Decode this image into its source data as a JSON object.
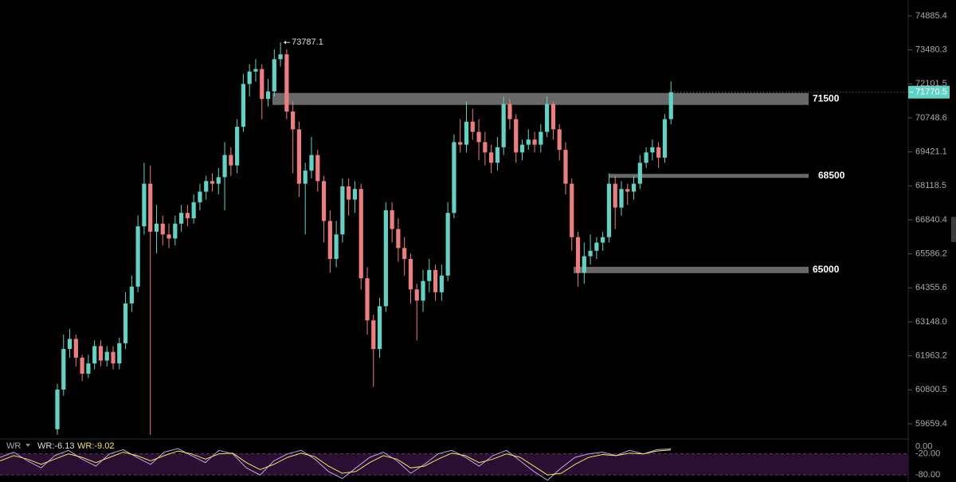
{
  "chart_data": {
    "type": "candlestick",
    "log_scale": true,
    "ylim": [
      59184,
      75553
    ],
    "yticks": [
      74885.4,
      73480.3,
      72101.5,
      70748.6,
      69421.1,
      68118.5,
      66840.4,
      65586.2,
      64355.6,
      {
        "value": 63148.0,
        "label": "63148.0"
      },
      61963.2,
      60800.5,
      59659.4
    ],
    "up_color": "#5fd3c4",
    "down_color": "#ef7d7d",
    "open": [
      59480,
      60810,
      62200,
      62550,
      61900,
      61350,
      61700,
      62300,
      61800,
      62100,
      61700,
      62400,
      63800,
      64400,
      66600,
      68200,
      66400,
      66700,
      66300,
      66150,
      66700,
      67100,
      66900,
      67500,
      67900,
      68300,
      68200,
      68450,
      69300,
      68900,
      70400,
      72100,
      72600,
      72700,
      71500,
      71800,
      73100,
      73300,
      71000,
      70300,
      68200,
      68700,
      69300,
      68300,
      66800,
      65400,
      66300,
      68100,
      67600,
      68000,
      64700,
      63200,
      62200,
      63700,
      67200,
      66500,
      65800,
      65400,
      64300,
      63900,
      64600,
      65000,
      64200,
      64800,
      67100,
      69800,
      69700,
      70600,
      70200,
      69800,
      69400,
      69000,
      69600,
      71300,
      70700,
      69400,
      69700,
      69900,
      69700,
      70200,
      71300,
      70300,
      69500,
      68200,
      66200,
      64900,
      65500,
      65700,
      66000,
      66200,
      68200,
      67300,
      68000,
      67900,
      68200,
      69000,
      69400,
      69600,
      69200,
      70700
    ],
    "high": [
      61000,
      62700,
      62900,
      62700,
      62000,
      62000,
      62500,
      62500,
      62300,
      62300,
      62600,
      64200,
      64800,
      67000,
      69000,
      68900,
      67400,
      67000,
      66700,
      67000,
      67400,
      67400,
      67800,
      68200,
      68500,
      68600,
      68800,
      69800,
      69600,
      70700,
      72500,
      72900,
      73100,
      72900,
      72300,
      73500,
      73787.1,
      73500,
      71400,
      70600,
      69000,
      70000,
      69500,
      68500,
      67200,
      66800,
      68400,
      68400,
      68300,
      68200,
      65100,
      63400,
      64000,
      67500,
      67500,
      66900,
      66200,
      65600,
      64500,
      65000,
      65400,
      65200,
      65200,
      67500,
      70100,
      70700,
      71400,
      71100,
      70700,
      70200,
      69700,
      70000,
      71600,
      71500,
      70900,
      69900,
      70300,
      70200,
      70500,
      71600,
      71400,
      70500,
      69800,
      68400,
      66400,
      66000,
      66300,
      66200,
      66400,
      68600,
      68500,
      68300,
      68200,
      68500,
      69300,
      69600,
      69900,
      69800,
      70900,
      72200
    ],
    "low": [
      59300,
      60600,
      61900,
      61600,
      61100,
      61200,
      61500,
      61600,
      61600,
      61500,
      61500,
      62200,
      63500,
      64200,
      66300,
      59300,
      65600,
      65900,
      65800,
      65900,
      66400,
      66600,
      66700,
      67200,
      67600,
      67900,
      67800,
      67200,
      68500,
      68600,
      70200,
      71600,
      72200,
      70700,
      71200,
      71600,
      72800,
      70700,
      68600,
      67700,
      66300,
      68400,
      67900,
      66000,
      64900,
      65100,
      66000,
      67000,
      67100,
      64300,
      62700,
      60900,
      61900,
      63500,
      66000,
      65300,
      64800,
      63800,
      62500,
      63500,
      64200,
      63900,
      63900,
      64600,
      66900,
      69400,
      69400,
      69900,
      69100,
      68900,
      68600,
      68700,
      69300,
      70300,
      69000,
      69100,
      69500,
      69400,
      69400,
      70000,
      69900,
      69100,
      67800,
      65700,
      64400,
      64500,
      65200,
      65400,
      65700,
      66000,
      66500,
      67000,
      67400,
      67600,
      68000,
      68800,
      69100,
      68800,
      69000,
      70500
    ],
    "close": [
      60810,
      62200,
      62550,
      61900,
      61350,
      61700,
      62300,
      61800,
      62100,
      61700,
      62400,
      63800,
      64400,
      66600,
      68200,
      66400,
      66700,
      66300,
      66150,
      66700,
      67100,
      66900,
      67500,
      67900,
      68300,
      68200,
      68450,
      69300,
      68900,
      70400,
      72100,
      72600,
      72700,
      71500,
      71800,
      73100,
      73300,
      71000,
      70300,
      68200,
      68700,
      69300,
      68300,
      66800,
      65400,
      66300,
      68100,
      67600,
      68000,
      64700,
      63200,
      62200,
      63700,
      67200,
      66500,
      65800,
      65400,
      64300,
      63900,
      64600,
      65000,
      64200,
      64800,
      67100,
      69800,
      69700,
      70600,
      70200,
      69800,
      69400,
      69000,
      69600,
      71300,
      70700,
      69400,
      69700,
      69900,
      69700,
      70200,
      71300,
      70300,
      69500,
      68200,
      66200,
      64900,
      65500,
      65700,
      66000,
      66200,
      68200,
      67300,
      68000,
      67900,
      68200,
      69000,
      69400,
      69600,
      69200,
      70700,
      71770.5
    ],
    "zones": [
      {
        "level": 71500
      },
      {
        "level": 68500
      },
      {
        "level": 65000
      }
    ],
    "indicator": {
      "title": "WR",
      "ylim": [
        -100,
        20
      ],
      "yticks": [
        {
          "value": 0,
          "label": "0.00"
        },
        {
          "value": -20,
          "label": "-20.00"
        },
        {
          "value": -80,
          "label": "-80.00"
        }
      ],
      "series": [
        {
          "label": "WR:-6.13",
          "color": "#b9a7e6",
          "values": [
            -30,
            -15,
            -40,
            -60,
            -25,
            -10,
            -35,
            -55,
            -20,
            -8,
            -30,
            -50,
            -15,
            -5,
            -25,
            -45,
            -10,
            -20,
            -60,
            -80,
            -40,
            -20,
            -10,
            -35,
            -70,
            -90,
            -60,
            -30,
            -15,
            -40,
            -75,
            -50,
            -20,
            -10,
            -30,
            -55,
            -25,
            -10,
            -40,
            -70,
            -95,
            -60,
            -30,
            -20,
            -15,
            -25,
            -10,
            -20,
            -8,
            -6.13
          ]
        },
        {
          "label": "WR:-9.02",
          "color": "#f3e35a",
          "values": [
            -40,
            -25,
            -35,
            -50,
            -35,
            -20,
            -30,
            -45,
            -30,
            -15,
            -25,
            -40,
            -25,
            -12,
            -20,
            -35,
            -20,
            -18,
            -45,
            -65,
            -50,
            -30,
            -18,
            -28,
            -55,
            -75,
            -70,
            -45,
            -25,
            -35,
            -60,
            -55,
            -35,
            -18,
            -25,
            -45,
            -35,
            -20,
            -30,
            -55,
            -80,
            -75,
            -50,
            -30,
            -22,
            -25,
            -18,
            -20,
            -12,
            -9.02
          ]
        }
      ]
    }
  }
}
